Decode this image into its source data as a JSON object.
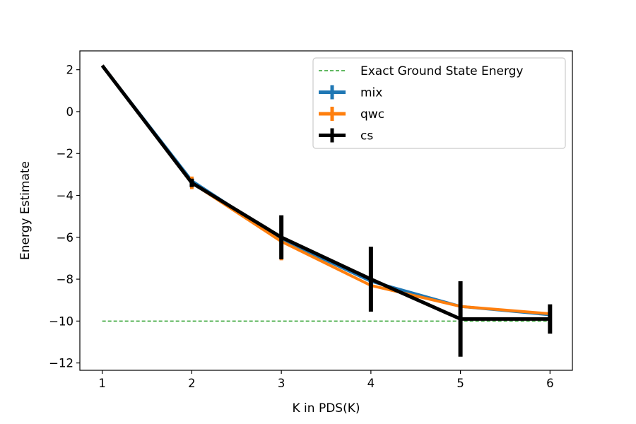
{
  "chart_data": {
    "type": "line",
    "title": "",
    "xlabel": "K in PDS(K)",
    "ylabel": "Energy Estimate",
    "xlim": [
      0.75,
      6.25
    ],
    "ylim": [
      -12.35,
      2.9
    ],
    "x_ticks": [
      1,
      2,
      3,
      4,
      5,
      6
    ],
    "y_ticks": [
      2,
      0,
      -2,
      -4,
      -6,
      -8,
      -10,
      -12
    ],
    "grid": false,
    "legend_position": "top-right",
    "exact_energy": -10,
    "series": [
      {
        "name": "Exact Ground State Energy",
        "style": "dashed",
        "color": "#2ca02c",
        "x": [
          1,
          6
        ],
        "y": [
          -10,
          -10
        ]
      },
      {
        "name": "mix",
        "color": "#1f77b4",
        "x": [
          1,
          2,
          3,
          4,
          5,
          6
        ],
        "y": [
          2.2,
          -3.3,
          -6.1,
          -8.1,
          -9.3,
          -9.7
        ],
        "yerr": [
          0,
          0.15,
          0.15,
          0.15,
          0.1,
          0.15
        ]
      },
      {
        "name": "qwc",
        "color": "#ff7f0e",
        "x": [
          1,
          2,
          3,
          4,
          5,
          6
        ],
        "y": [
          2.2,
          -3.4,
          -6.2,
          -8.3,
          -9.3,
          -9.65
        ],
        "yerr": [
          0,
          0.3,
          0.9,
          0.2,
          0.15,
          0.35
        ]
      },
      {
        "name": "cs",
        "color": "#000000",
        "x": [
          1,
          2,
          3,
          4,
          5,
          6
        ],
        "y": [
          2.2,
          -3.4,
          -6.0,
          -8.0,
          -9.9,
          -9.9
        ],
        "yerr": [
          0,
          0.2,
          1.05,
          1.55,
          1.8,
          0.7
        ]
      }
    ]
  }
}
